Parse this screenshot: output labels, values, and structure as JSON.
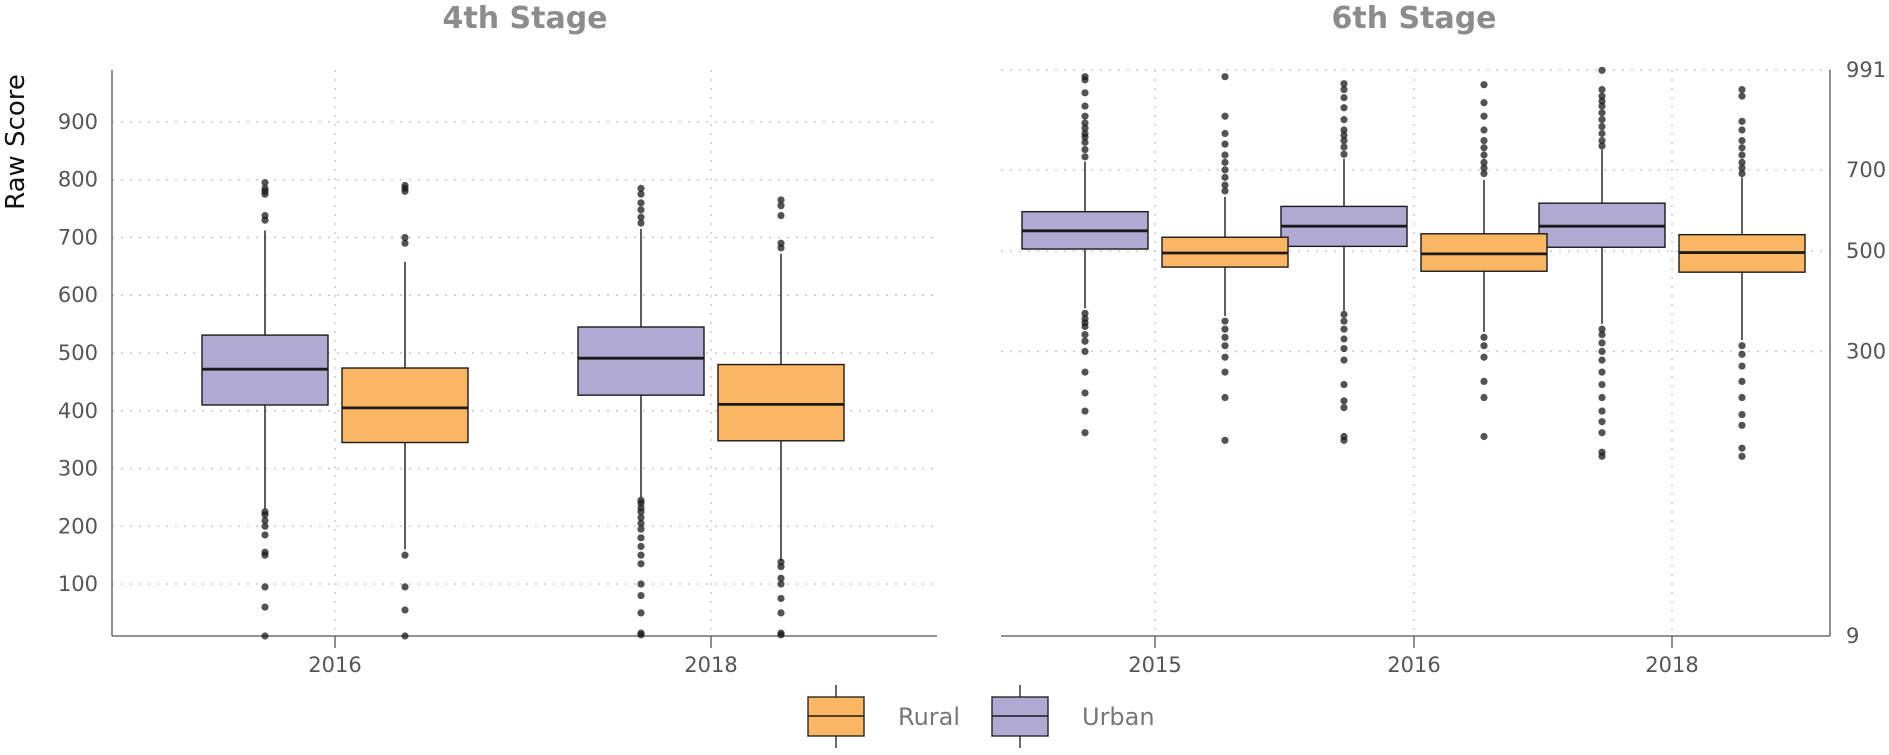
{
  "chart_data": [
    {
      "type": "boxplot",
      "title": "4th Stage",
      "ylabel": "Raw Score",
      "ylim": [
        10,
        990
      ],
      "yticks": [
        100,
        200,
        300,
        400,
        500,
        600,
        700,
        800,
        900
      ],
      "grid": true,
      "categories": [
        "2016",
        "2018"
      ],
      "series": [
        {
          "name": "Urban",
          "color": "#b0a9d2",
          "boxes": [
            {
              "category": "2016",
              "q1": 410,
              "median": 472,
              "q3": 531,
              "whisker_low": 230,
              "whisker_high": 712,
              "outliers": [
                10,
                60,
                95,
                150,
                155,
                185,
                200,
                210,
                220,
                225,
                730,
                738,
                775,
                780,
                785,
                795
              ]
            },
            {
              "category": "2018",
              "q1": 427,
              "median": 491,
              "q3": 545,
              "whisker_low": 250,
              "whisker_high": 715,
              "outliers": [
                12,
                15,
                50,
                80,
                100,
                135,
                150,
                165,
                180,
                195,
                205,
                215,
                225,
                232,
                240,
                245,
                725,
                735,
                748,
                760,
                775,
                785
              ]
            }
          ]
        },
        {
          "name": "Rural",
          "color": "#fbb663",
          "boxes": [
            {
              "category": "2016",
              "q1": 345,
              "median": 405,
              "q3": 474,
              "whisker_low": 160,
              "whisker_high": 658,
              "outliers": [
                10,
                55,
                95,
                150,
                690,
                700,
                780,
                785,
                790
              ]
            },
            {
              "category": "2018",
              "q1": 348,
              "median": 411,
              "q3": 480,
              "whisker_low": 140,
              "whisker_high": 672,
              "outliers": [
                12,
                15,
                50,
                75,
                100,
                110,
                130,
                138,
                682,
                690,
                738,
                755,
                765
              ]
            }
          ]
        }
      ]
    },
    {
      "type": "boxplot",
      "title": "6th Stage",
      "ylabel": "",
      "yscale": "sqrt",
      "ylim": [
        9,
        991
      ],
      "yticks": [
        9,
        300,
        500,
        700,
        991
      ],
      "grid": true,
      "categories": [
        "2015",
        "2016",
        "2018"
      ],
      "series": [
        {
          "name": "Urban",
          "color": "#b0a9d2",
          "boxes": [
            {
              "category": "2015",
              "q1": 505,
              "median": 547,
              "q3": 593,
              "whisker_low": 380,
              "whisker_high": 722,
              "outliers": [
                175,
                205,
                232,
                265,
                300,
                318,
                330,
                345,
                352,
                360,
                370,
                735,
                755,
                775,
                790,
                800,
                815,
                830,
                850,
                880,
                920,
                960,
                970
              ]
            },
            {
              "category": "2016",
              "q1": 511,
              "median": 558,
              "q3": 606,
              "whisker_low": 375,
              "whisker_high": 730,
              "outliers": [
                165,
                170,
                210,
                220,
                245,
                285,
                305,
                322,
                340,
                355,
                368,
                742,
                762,
                780,
                795,
                810,
                840,
                875,
                905,
                930,
                948
              ]
            },
            {
              "category": "2018",
              "q1": 509,
              "median": 558,
              "q3": 614,
              "whisker_low": 350,
              "whisker_high": 755,
              "outliers": [
                145,
                150,
                175,
                190,
                205,
                225,
                245,
                265,
                285,
                300,
                315,
                330,
                340,
                765,
                780,
                800,
                820,
                840,
                860,
                880,
                895,
                910,
                930,
                990
              ]
            }
          ]
        },
        {
          "name": "Rural",
          "color": "#fbb663",
          "boxes": [
            {
              "category": "2015",
              "q1": 465,
              "median": 496,
              "q3": 532,
              "whisker_low": 365,
              "whisker_high": 630,
              "outliers": [
                165,
                225,
                265,
                290,
                310,
                325,
                340,
                355,
                645,
                660,
                680,
                700,
                720,
                740,
                770,
                800,
                850,
                970
              ]
            },
            {
              "category": "2016",
              "q1": 456,
              "median": 494,
              "q3": 540,
              "whisker_low": 335,
              "whisker_high": 673,
              "outliers": [
                170,
                225,
                250,
                290,
                310,
                325,
                690,
                705,
                720,
                740,
                760,
                780,
                810,
                850,
                890,
                945
              ]
            },
            {
              "category": "2018",
              "q1": 454,
              "median": 497,
              "q3": 538,
              "whisker_low": 320,
              "whisker_high": 680,
              "outliers": [
                145,
                155,
                185,
                200,
                225,
                250,
                275,
                295,
                310,
                690,
                705,
                720,
                740,
                760,
                780,
                810,
                835,
                910,
                930
              ]
            }
          ]
        }
      ]
    }
  ],
  "legend": {
    "items": [
      "Rural",
      "Urban"
    ],
    "position": "bottom"
  }
}
